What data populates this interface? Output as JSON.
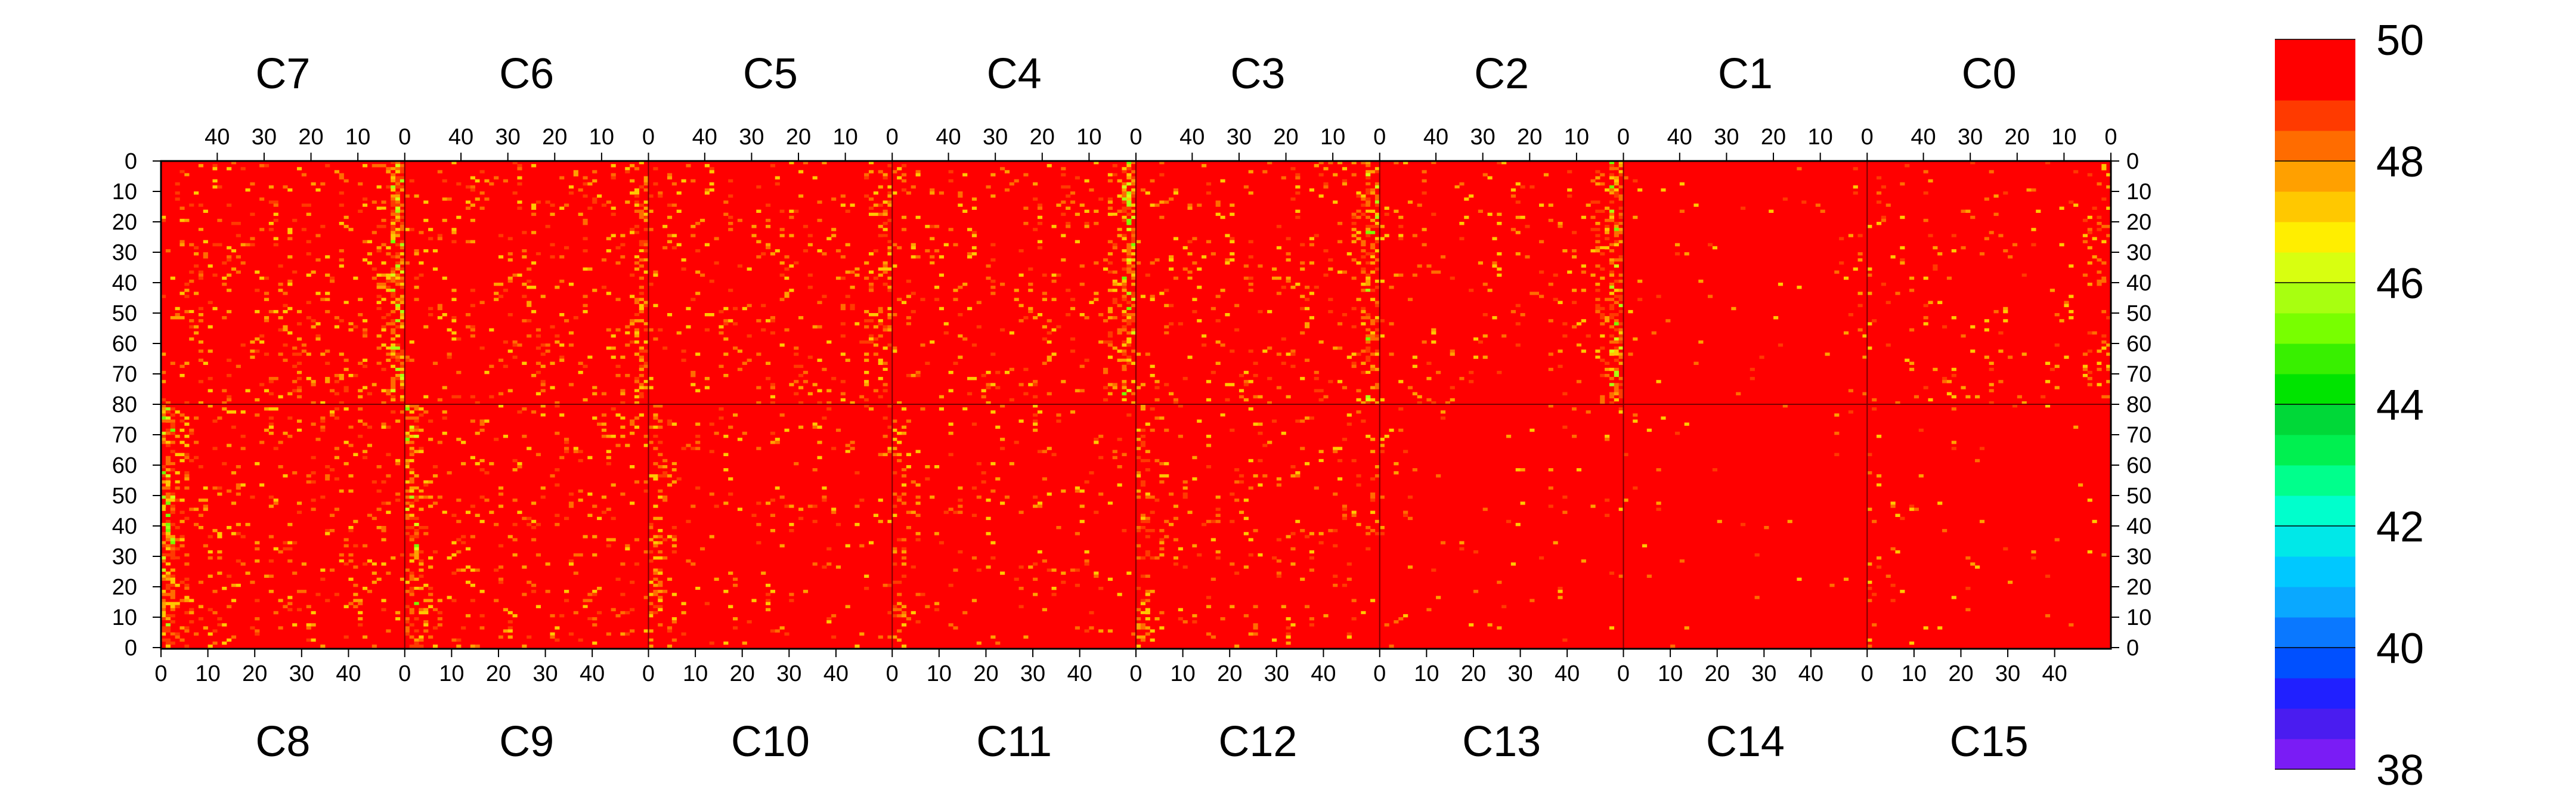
{
  "chart_data": {
    "type": "heatmap",
    "title": "",
    "top_chips": [
      "C7",
      "C6",
      "C5",
      "C4",
      "C3",
      "C2",
      "C1",
      "C0"
    ],
    "bottom_chips": [
      "C8",
      "C9",
      "C10",
      "C11",
      "C12",
      "C13",
      "C14",
      "C15"
    ],
    "top_x_ticks": [
      "40",
      "30",
      "20",
      "10",
      "0"
    ],
    "bottom_x_ticks": [
      "0",
      "10",
      "20",
      "30",
      "40"
    ],
    "top_y_ticks": [
      "0",
      "10",
      "20",
      "30",
      "40",
      "50",
      "60",
      "70",
      "80"
    ],
    "bottom_y_ticks": [
      "70",
      "60",
      "50",
      "40",
      "30",
      "20",
      "10",
      "0"
    ],
    "columns_per_chip": 52,
    "rows_per_half": 80,
    "colorbar": {
      "min": 38,
      "max": 50,
      "ticks": [
        "50",
        "48",
        "46",
        "44",
        "42",
        "40",
        "38"
      ]
    },
    "summary": {
      "dominant_value": 50,
      "hot_columns_note": "columns near column 0 boundaries show lower values (yellow/green, ~45-48)"
    },
    "colors": {
      "background": "#ff0000",
      "grid": "#7a0000"
    }
  }
}
